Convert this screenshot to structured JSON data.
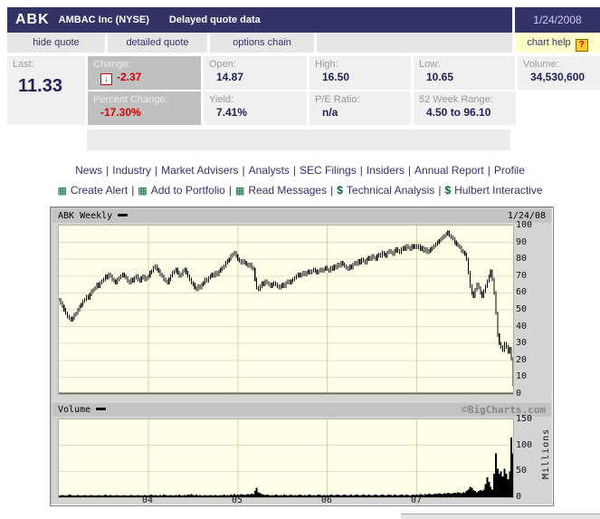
{
  "colors": {
    "navy": "#333366",
    "negative_red": "#cc0000",
    "link_green": "#006633",
    "help_bg": "#ffffcc",
    "plot_bg": "#ffffe9"
  },
  "header": {
    "symbol": "ABK",
    "company": "AMBAC Inc (NYSE)",
    "note": "Delayed quote data",
    "date": "1/24/2008"
  },
  "tabs": {
    "hide": "hide quote",
    "detailed": "detailed quote",
    "options": "options chain",
    "help": "chart help",
    "help_icon": "?"
  },
  "quote": {
    "last_label": "Last:",
    "last": "11.33",
    "change_label": "Change:",
    "change": "-2.37",
    "change_icon": "down-arrow",
    "percent_change_label": "Percent Change:",
    "percent_change": "-17.30%",
    "open_label": "Open:",
    "open": "14.87",
    "high_label": "High:",
    "high": "16.50",
    "low_label": "Low:",
    "low": "10.65",
    "volume_label": "Volume:",
    "volume": "34,530,600",
    "yield_label": "Yield:",
    "yield": "7.41%",
    "pe_label": "P/E Ratio:",
    "pe": "n/a",
    "range_label": "52 Week Range:",
    "range": "4.50 to 96.10"
  },
  "links_row1": [
    "News",
    "Industry",
    "Market Advisers",
    "Analysts",
    "SEC Filings",
    "Insiders",
    "Annual Report",
    "Profile"
  ],
  "links_row2": [
    {
      "icon": "grid",
      "label": "Create Alert"
    },
    {
      "icon": "grid",
      "label": "Add to Portfolio"
    },
    {
      "icon": "grid",
      "label": "Read Messages"
    },
    {
      "icon": "dollar",
      "label": "Technical Analysis"
    },
    {
      "icon": "dollar",
      "label": "Hulbert Interactive"
    }
  ],
  "chart_data": [
    {
      "type": "line",
      "subtype": "weekly OHLC hi-lo bars",
      "title": "ABK Weekly",
      "date_label": "1/24/08",
      "x_unit": "weeks since Jan 2003",
      "x_tick_labels": [
        "04",
        "05",
        "06",
        "07"
      ],
      "x_tick_weeks": [
        52,
        104,
        156,
        208
      ],
      "ylim": [
        0,
        100
      ],
      "yticks": [
        0,
        10,
        20,
        30,
        40,
        50,
        60,
        70,
        80,
        90,
        100
      ],
      "bar_halfspread": 1.0,
      "last_low": 4.5,
      "last_close": 11.33,
      "weekly_close": [
        56,
        54,
        52,
        50,
        48,
        46,
        45,
        44,
        45,
        47,
        48,
        50,
        52,
        53,
        55,
        56,
        58,
        57,
        59,
        61,
        62,
        63,
        65,
        64,
        66,
        67,
        68,
        70,
        69,
        71,
        70,
        68,
        67,
        66,
        68,
        69,
        70,
        71,
        70,
        69,
        67,
        66,
        68,
        67,
        69,
        70,
        68,
        67,
        69,
        70,
        68,
        69,
        70,
        72,
        73,
        75,
        76,
        74,
        73,
        71,
        70,
        68,
        67,
        66,
        68,
        70,
        72,
        73,
        74,
        72,
        70,
        71,
        73,
        74,
        72,
        70,
        68,
        66,
        65,
        63,
        62,
        64,
        63,
        65,
        66,
        68,
        67,
        69,
        70,
        71,
        70,
        72,
        71,
        73,
        74,
        75,
        76,
        78,
        79,
        80,
        82,
        83,
        84,
        82,
        80,
        79,
        78,
        79,
        78,
        77,
        76,
        77,
        75,
        74,
        68,
        63,
        62,
        64,
        66,
        65,
        67,
        66,
        65,
        64,
        65,
        66,
        65,
        64,
        63,
        64,
        65,
        64,
        66,
        67,
        66,
        67,
        68,
        69,
        70,
        71,
        70,
        71,
        72,
        71,
        72,
        73,
        72,
        73,
        74,
        73,
        72,
        73,
        74,
        73,
        74,
        75,
        74,
        73,
        75,
        74,
        76,
        75,
        77,
        76,
        78,
        77,
        76,
        75,
        74,
        76,
        75,
        77,
        78,
        77,
        79,
        78,
        80,
        79,
        78,
        80,
        81,
        80,
        82,
        81,
        80,
        82,
        83,
        82,
        84,
        83,
        82,
        84,
        85,
        84,
        83,
        85,
        86,
        85,
        84,
        86,
        87,
        86,
        88,
        87,
        86,
        88,
        87,
        88,
        87,
        88,
        86,
        87,
        85,
        86,
        84,
        85,
        86,
        87,
        88,
        89,
        90,
        91,
        92,
        93,
        94,
        95,
        96,
        94,
        93,
        92,
        90,
        89,
        88,
        87,
        85,
        84,
        83,
        80,
        72,
        64,
        60,
        58,
        62,
        65,
        63,
        60,
        58,
        61,
        64,
        67,
        70,
        73,
        68,
        60,
        48,
        35,
        30,
        28,
        26,
        30,
        28,
        25,
        27,
        21,
        11.33
      ]
    },
    {
      "type": "bar",
      "title": "Volume",
      "ylabel": "Millions",
      "watermark": "©BigCharts.com",
      "ylim": [
        0,
        150
      ],
      "yticks": [
        0,
        50,
        100,
        150
      ],
      "x_tick_labels": [
        "04",
        "05",
        "06",
        "07"
      ],
      "x_tick_weeks": [
        52,
        104,
        156,
        208
      ],
      "weekly_volume_millions": [
        3,
        2,
        4,
        3,
        2,
        3,
        5,
        4,
        3,
        2,
        3,
        4,
        2,
        3,
        2,
        4,
        3,
        2,
        3,
        4,
        2,
        3,
        2,
        4,
        3,
        2,
        3,
        5,
        3,
        2,
        4,
        3,
        2,
        3,
        4,
        2,
        3,
        2,
        4,
        3,
        2,
        3,
        4,
        2,
        3,
        2,
        4,
        3,
        2,
        3,
        4,
        3,
        3,
        4,
        5,
        3,
        4,
        2,
        3,
        4,
        3,
        5,
        4,
        3,
        2,
        4,
        3,
        2,
        4,
        3,
        5,
        3,
        2,
        4,
        3,
        5,
        4,
        6,
        4,
        3,
        5,
        3,
        4,
        3,
        2,
        4,
        3,
        2,
        4,
        3,
        2,
        4,
        3,
        2,
        4,
        3,
        5,
        3,
        4,
        3,
        5,
        4,
        6,
        4,
        5,
        4,
        6,
        5,
        4,
        5,
        6,
        5,
        7,
        6,
        12,
        18,
        10,
        8,
        6,
        5,
        4,
        5,
        4,
        3,
        4,
        3,
        5,
        4,
        3,
        4,
        3,
        5,
        4,
        3,
        4,
        5,
        3,
        4,
        3,
        4,
        5,
        4,
        3,
        4,
        3,
        4,
        5,
        3,
        4,
        3,
        4,
        5,
        4,
        3,
        4,
        3,
        4,
        3,
        5,
        4,
        3,
        4,
        5,
        4,
        3,
        4,
        5,
        4,
        3,
        4,
        5,
        3,
        4,
        5,
        4,
        3,
        4,
        5,
        4,
        3,
        5,
        4,
        3,
        4,
        5,
        4,
        3,
        4,
        5,
        4,
        3,
        4,
        5,
        4,
        3,
        5,
        4,
        3,
        4,
        5,
        4,
        3,
        5,
        4,
        3,
        4,
        5,
        4,
        5,
        4,
        6,
        5,
        4,
        6,
        5,
        7,
        6,
        5,
        6,
        7,
        6,
        8,
        7,
        6,
        8,
        7,
        9,
        8,
        7,
        8,
        9,
        8,
        10,
        9,
        8,
        10,
        9,
        12,
        15,
        20,
        18,
        14,
        12,
        10,
        12,
        14,
        12,
        15,
        25,
        38,
        30,
        20,
        15,
        45,
        85,
        55,
        45,
        50,
        40,
        55,
        45,
        35,
        50,
        115,
        85
      ]
    }
  ]
}
